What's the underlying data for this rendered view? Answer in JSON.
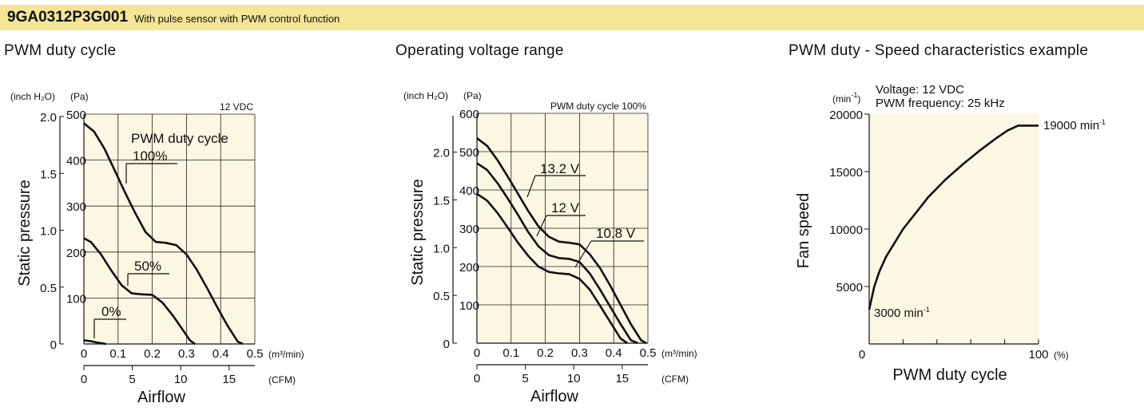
{
  "header": {
    "model": "9GA0312P3G001",
    "description": "With pulse sensor with PWM control function"
  },
  "colors": {
    "header_band": "#f4e597",
    "plot_bg": "#fbf7e2",
    "curve": "#111111"
  },
  "chart_data": [
    {
      "type": "line",
      "title": "PWM duty cycle",
      "xlabel": "Airflow",
      "ylabel": "Static pressure",
      "condition": "12 VDC",
      "x_unit": "(m³/min)",
      "x2_unit": "(CFM)",
      "y_unit": "(Pa)",
      "y2_unit": "(inch H₂O)",
      "xlim": [
        0,
        0.5
      ],
      "ylim": [
        0,
        500
      ],
      "x_ticks": [
        "0",
        "0.1",
        "0.2",
        "0.3",
        "0.4",
        "0.5"
      ],
      "y_ticks": [
        "100",
        "200",
        "300",
        "400",
        "500"
      ],
      "y2_ticks": [
        "0",
        "0.5",
        "1.0",
        "1.5",
        "2.0"
      ],
      "x2_ticks": [
        "0",
        "5",
        "10",
        "15"
      ],
      "legend_title": "PWM duty cycle",
      "series": [
        {
          "name": "100%",
          "x": [
            0,
            0.03,
            0.06,
            0.09,
            0.12,
            0.15,
            0.18,
            0.21,
            0.24,
            0.27,
            0.3,
            0.33,
            0.36,
            0.39,
            0.42,
            0.45,
            0.465
          ],
          "y": [
            480,
            462,
            425,
            378,
            330,
            285,
            244,
            222,
            220,
            215,
            195,
            162,
            122,
            80,
            40,
            5,
            0
          ]
        },
        {
          "name": "50%",
          "x": [
            0,
            0.02,
            0.05,
            0.08,
            0.11,
            0.14,
            0.17,
            0.2,
            0.23,
            0.26,
            0.29,
            0.31,
            0.325
          ],
          "y": [
            230,
            222,
            195,
            160,
            128,
            110,
            108,
            107,
            90,
            62,
            30,
            8,
            0
          ]
        },
        {
          "name": "0%",
          "x": [
            0,
            0.02,
            0.04,
            0.065
          ],
          "y": [
            8,
            6,
            3,
            0
          ]
        }
      ]
    },
    {
      "type": "line",
      "title": "Operating voltage range",
      "xlabel": "Airflow",
      "ylabel": "Static pressure",
      "condition": "PWM duty cycle 100%",
      "x_unit": "(m³/min)",
      "x2_unit": "(CFM)",
      "y_unit": "(Pa)",
      "y2_unit": "(inch H₂O)",
      "xlim": [
        0,
        0.5
      ],
      "ylim": [
        0,
        600
      ],
      "x_ticks": [
        "0",
        "0.1",
        "0.2",
        "0.3",
        "0.4",
        "0.5"
      ],
      "y_ticks": [
        "100",
        "200",
        "300",
        "400",
        "500",
        "600"
      ],
      "y2_ticks": [
        "0",
        "0.5",
        "1.0",
        "1.5",
        "2.0"
      ],
      "x2_ticks": [
        "0",
        "5",
        "10",
        "15"
      ],
      "series": [
        {
          "name": "13.2 V",
          "x": [
            0,
            0.03,
            0.06,
            0.09,
            0.12,
            0.15,
            0.18,
            0.21,
            0.24,
            0.27,
            0.3,
            0.33,
            0.36,
            0.39,
            0.42,
            0.45,
            0.48,
            0.495
          ],
          "y": [
            535,
            515,
            478,
            435,
            390,
            345,
            305,
            278,
            265,
            262,
            258,
            232,
            196,
            150,
            100,
            50,
            8,
            0
          ]
        },
        {
          "name": "12 V",
          "x": [
            0,
            0.03,
            0.06,
            0.09,
            0.12,
            0.15,
            0.18,
            0.21,
            0.24,
            0.27,
            0.3,
            0.33,
            0.36,
            0.39,
            0.42,
            0.45,
            0.47
          ],
          "y": [
            470,
            452,
            418,
            378,
            335,
            290,
            253,
            230,
            222,
            220,
            212,
            182,
            140,
            95,
            50,
            8,
            0
          ]
        },
        {
          "name": "10.8 V",
          "x": [
            0,
            0.03,
            0.06,
            0.09,
            0.12,
            0.15,
            0.18,
            0.21,
            0.24,
            0.27,
            0.3,
            0.33,
            0.36,
            0.39,
            0.42,
            0.44
          ],
          "y": [
            390,
            372,
            340,
            302,
            262,
            228,
            200,
            186,
            182,
            180,
            168,
            140,
            98,
            55,
            12,
            0
          ]
        }
      ]
    },
    {
      "type": "line",
      "title": "PWM duty - Speed characteristics example",
      "xlabel": "PWM duty cycle",
      "ylabel": "Fan speed",
      "x_unit": "(%)",
      "y_unit": "(min-1)",
      "conditions": [
        "Voltage: 12 VDC",
        "PWM frequency: 25 kHz"
      ],
      "xlim": [
        0,
        100
      ],
      "ylim": [
        0,
        20000
      ],
      "x_ticks": [
        "0",
        "100"
      ],
      "y_ticks": [
        "5000",
        "10000",
        "15000",
        "20000"
      ],
      "start_label": "3000 min",
      "end_label": "19000 min",
      "series": [
        {
          "name": "",
          "x": [
            0,
            3,
            6,
            10,
            15,
            20,
            27,
            35,
            45,
            55,
            65,
            75,
            82,
            88,
            91,
            96,
            100
          ],
          "y": [
            3000,
            5000,
            6300,
            7600,
            8800,
            10000,
            11300,
            12800,
            14300,
            15600,
            16800,
            17900,
            18600,
            19000,
            19000,
            19000,
            19000
          ]
        }
      ]
    }
  ]
}
